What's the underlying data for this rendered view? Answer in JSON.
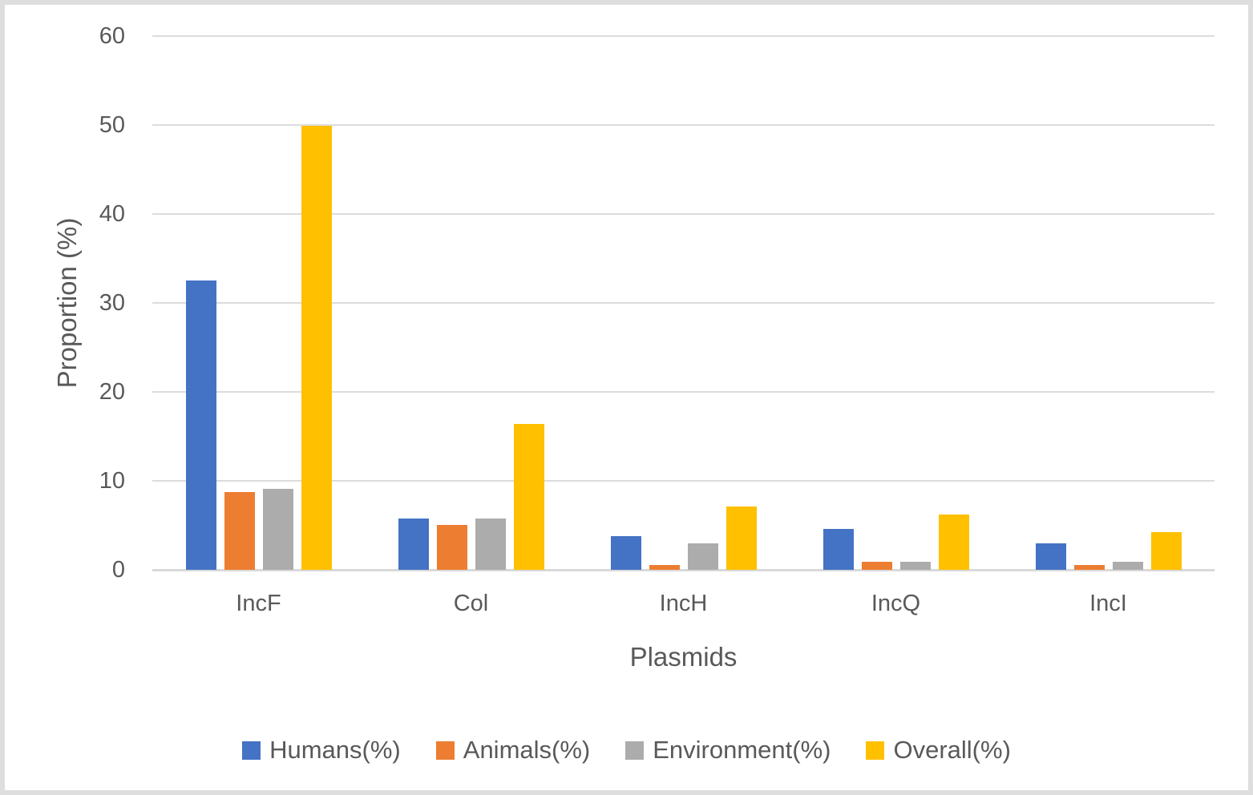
{
  "chart_data": {
    "type": "bar",
    "xlabel": "Plasmids",
    "ylabel": "Proportion (%)",
    "ylim": [
      0,
      60
    ],
    "yticks": [
      0,
      10,
      20,
      30,
      40,
      50,
      60
    ],
    "grid": true,
    "legend_position": "bottom",
    "categories": [
      "IncF",
      "Col",
      "IncH",
      "IncQ",
      "IncI"
    ],
    "series": [
      {
        "name": "Humans(%)",
        "color": "#4472C4",
        "values": [
          32.5,
          5.8,
          3.8,
          4.6,
          3.0
        ]
      },
      {
        "name": "Animals(%)",
        "color": "#ED7D31",
        "values": [
          8.7,
          5.0,
          0.5,
          0.9,
          0.5
        ]
      },
      {
        "name": "Environment(%)",
        "color": "#ACACAC",
        "values": [
          9.1,
          5.8,
          3.0,
          0.9,
          0.9
        ]
      },
      {
        "name": "Overall(%)",
        "color": "#FFC000",
        "values": [
          49.9,
          16.4,
          7.1,
          6.2,
          4.2
        ]
      }
    ]
  },
  "colors": {
    "grid": "#DCDCDC",
    "axis_line": "#D9D9D9",
    "text": "#595959",
    "border": "#DEDEDE",
    "background": "#FFFFFF"
  }
}
